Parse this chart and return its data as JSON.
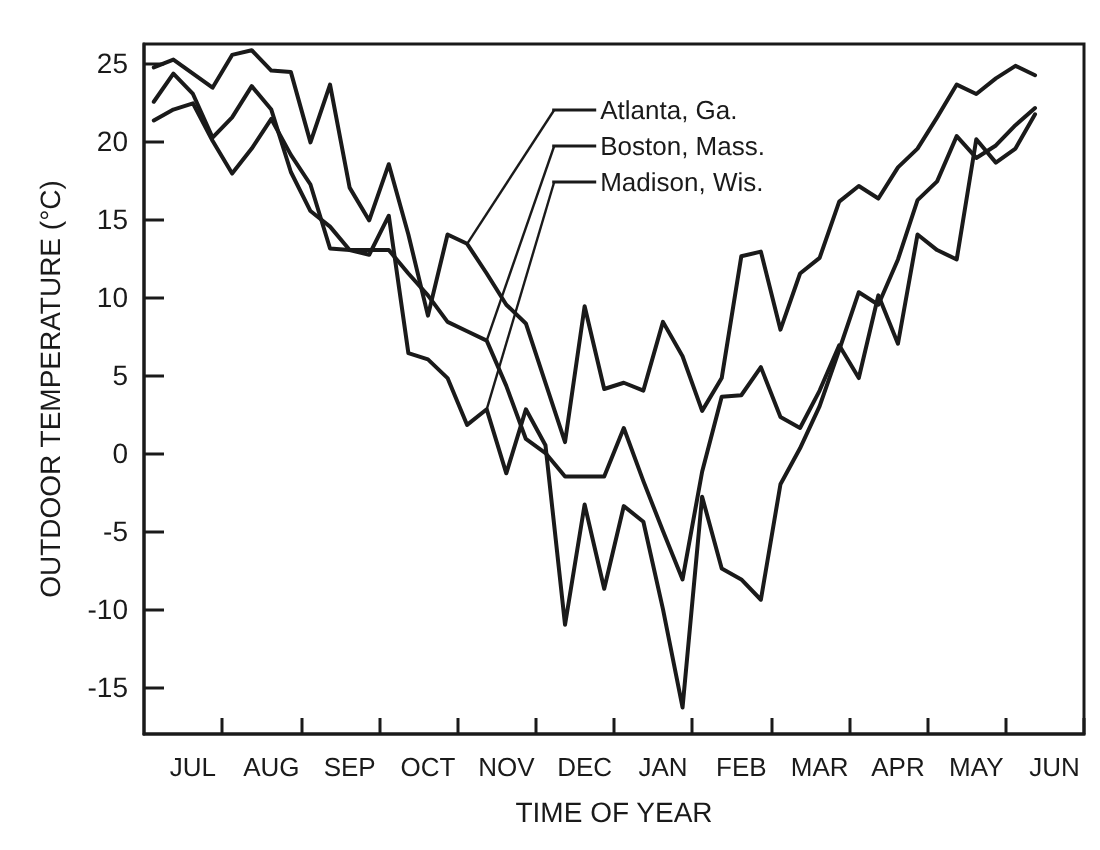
{
  "chart_data": {
    "type": "line",
    "xlabel": "TIME OF YEAR",
    "ylabel": "OUTDOOR TEMPERATURE (°C)",
    "categories": [
      null,
      null,
      "JUL",
      null,
      null,
      null,
      "AUG",
      null,
      null,
      null,
      "SEP",
      null,
      null,
      null,
      "OCT",
      null,
      null,
      null,
      "NOV",
      null,
      null,
      null,
      "DEC",
      null,
      null,
      null,
      "JAN",
      null,
      null,
      null,
      "FEB",
      null,
      null,
      null,
      "MAR",
      null,
      null,
      null,
      "APR",
      null,
      null,
      null,
      "MAY",
      null,
      null,
      null,
      "JUN",
      null
    ],
    "ylim": [
      -18,
      26.2
    ],
    "yticks": [
      -15,
      -10,
      -5,
      0,
      5,
      10,
      15,
      20,
      25
    ],
    "grid": false,
    "legend": "top",
    "marker": "none",
    "line_style": "solid",
    "series": [
      {
        "name": "Atlanta, Ga.",
        "color": "#1a1a1a",
        "values": [
          24.7,
          25.2,
          24.3,
          23.4,
          25.5,
          25.8,
          24.5,
          24.4,
          19.9,
          23.6,
          17,
          14.9,
          18.5,
          14,
          8.8,
          14.0,
          13.4,
          11.5,
          9.5,
          8.3,
          4.5,
          0.7,
          9.4,
          4.1,
          4.5,
          4.0,
          8.4,
          6.2,
          2.7,
          4.8,
          12.6,
          12.9,
          7.9,
          11.5,
          12.5,
          16.1,
          17.1,
          16.3,
          18.3,
          19.5,
          21.5,
          23.6,
          23.0,
          24.0,
          24.8,
          24.2,
          null,
          null
        ]
      },
      {
        "name": "Boston, Mass.",
        "color": "#1a1a1a",
        "values": [
          22.5,
          24.3,
          23,
          20.2,
          21.5,
          23.5,
          22.0,
          18,
          15.5,
          14.5,
          13.0,
          13.0,
          13.0,
          11.5,
          10.1,
          8.4,
          7.8,
          7.2,
          4.3,
          0.9,
          0,
          -1.5,
          -1.5,
          -1.5,
          1.6,
          -1.8,
          -5,
          -8.1,
          -1.2,
          3.6,
          3.7,
          5.5,
          2.3,
          1.6,
          4,
          6.9,
          4.8,
          10.1,
          7.0,
          14.0,
          13,
          12.4,
          20.1,
          18.6,
          19.5,
          21.7,
          null,
          null
        ]
      },
      {
        "name": "Madison, Wis.",
        "color": "#1a1a1a",
        "values": [
          21.3,
          22.0,
          22.4,
          20,
          17.9,
          19.5,
          21.4,
          19.1,
          17.2,
          13.1,
          13.0,
          12.7,
          15.2,
          6.4,
          6,
          4.8,
          1.8,
          2.8,
          -1.3,
          2.8,
          0.5,
          -11.0,
          -3.3,
          -8.7,
          -3.4,
          -4.4,
          -10,
          -16.3,
          -2.8,
          -7.4,
          -8.1,
          -9.4,
          -2.0,
          0.3,
          3,
          6.6,
          10.3,
          9.5,
          12.4,
          16.2,
          17.4,
          20.3,
          18.9,
          19.7,
          21,
          22.1,
          null,
          null
        ]
      }
    ]
  }
}
